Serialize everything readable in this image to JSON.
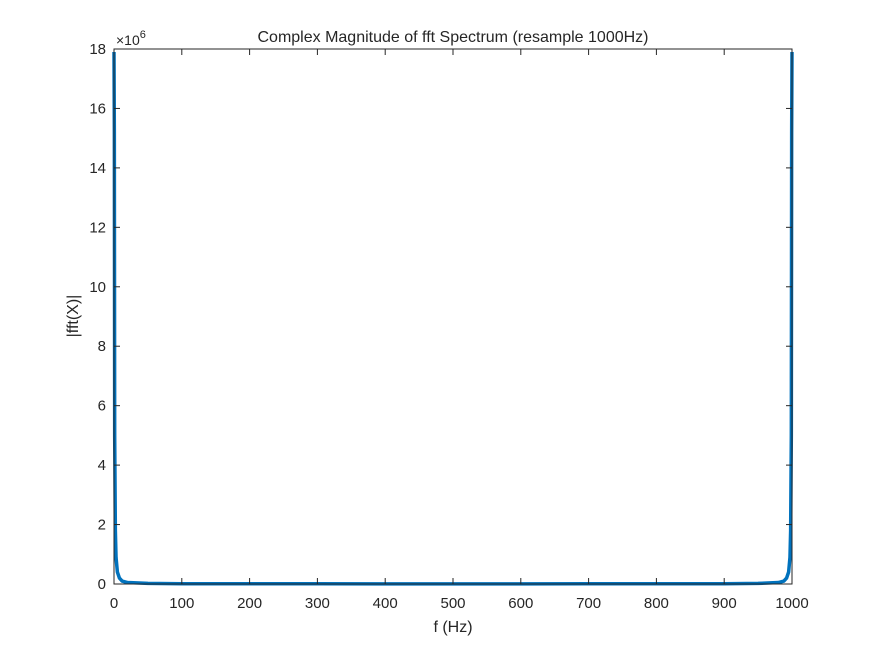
{
  "chart_data": {
    "type": "line",
    "title": "Complex Magnitude of fft Spectrum (resample 1000Hz)",
    "xlabel": "f (Hz)",
    "ylabel": "|fft(X)|",
    "y_exponent_label": "×10",
    "y_exponent_power": "6",
    "xlim": [
      0,
      1000
    ],
    "ylim": [
      0,
      18000000
    ],
    "xticks": [
      "0",
      "100",
      "200",
      "300",
      "400",
      "500",
      "600",
      "700",
      "800",
      "900",
      "1000"
    ],
    "xtick_values": [
      0,
      100,
      200,
      300,
      400,
      500,
      600,
      700,
      800,
      900,
      1000
    ],
    "yticks": [
      "0",
      "2",
      "4",
      "6",
      "8",
      "10",
      "12",
      "14",
      "16",
      "18"
    ],
    "ytick_values": [
      0,
      2000000,
      4000000,
      6000000,
      8000000,
      10000000,
      12000000,
      14000000,
      16000000,
      18000000
    ],
    "grid": false,
    "series": [
      {
        "color": "#0072bd",
        "x": [
          0,
          0.5,
          1,
          2,
          3,
          5,
          8,
          12,
          20,
          50,
          100,
          200,
          300,
          400,
          500,
          600,
          700,
          800,
          900,
          950,
          980,
          988,
          992,
          995,
          997,
          998,
          999,
          999.5,
          1000
        ],
        "y": [
          17900000,
          15200000,
          5000000,
          1800000,
          900000,
          400000,
          200000,
          100000,
          50000,
          20000,
          10000,
          8000,
          7000,
          6000,
          5000,
          6000,
          7000,
          8000,
          10000,
          20000,
          50000,
          100000,
          200000,
          400000,
          900000,
          1800000,
          5000000,
          15200000,
          17900000
        ]
      }
    ]
  }
}
